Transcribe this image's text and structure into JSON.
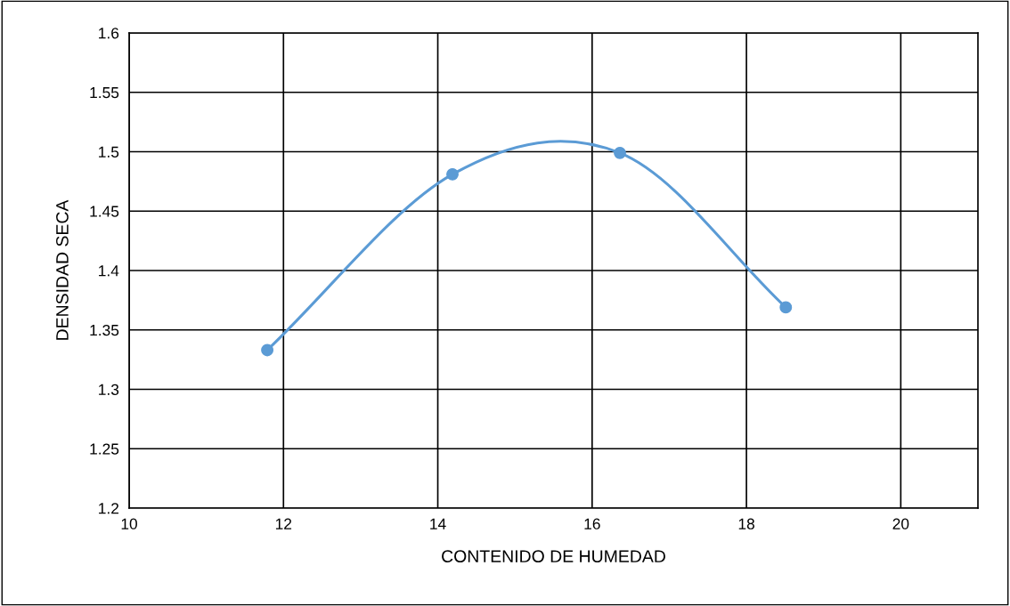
{
  "chart_data": {
    "type": "line",
    "xlabel": "CONTENIDO DE HUMEDAD",
    "ylabel": "DENSIDAD SECA",
    "x": [
      11.79,
      14.19,
      16.36,
      18.51
    ],
    "series": [
      {
        "color": "#5b9bd5",
        "values": [
          1.333,
          1.481,
          1.499,
          1.369
        ]
      }
    ],
    "marker": "circle",
    "line_style": "solid",
    "xlim": [
      10,
      21
    ],
    "xticks": [
      10,
      12,
      14,
      16,
      18,
      20
    ],
    "ylim": [
      1.2,
      1.6
    ],
    "yticks": [
      1.2,
      1.25,
      1.3,
      1.35,
      1.4,
      1.45,
      1.5,
      1.55,
      1.6
    ],
    "grid": true,
    "legend": false
  }
}
